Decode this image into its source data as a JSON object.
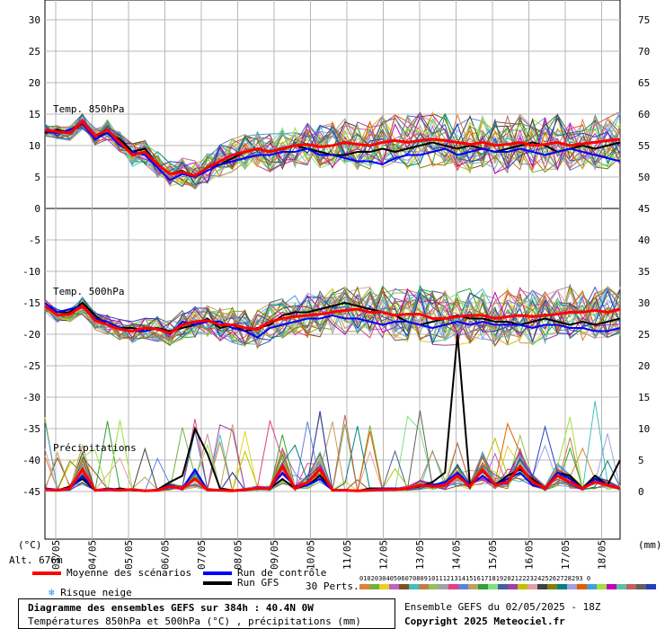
{
  "chart_data": {
    "type": "line",
    "title": "Diagramme des ensembles GEFS sur 384h : 40.4N 0W",
    "subtitle": "Températures 850hPa et 500hPa (°C) , précipitations (mm)",
    "run_info": "Ensemble GEFS du 02/05/2025 - 18Z",
    "copyright": "Copyright 2025 Meteociel.fr",
    "left_axis_unit": "(°C)",
    "right_axis_unit": "(mm)",
    "altitude": "Alt. 676m",
    "left_ticks": [
      "30",
      "25",
      "20",
      "15",
      "10",
      "5",
      "0",
      "-5",
      "-10",
      "-15",
      "-20",
      "-25",
      "-30",
      "-35",
      "-40",
      "-45"
    ],
    "right_ticks": [
      "75",
      "70",
      "65",
      "60",
      "55",
      "50",
      "45",
      "40",
      "35",
      "30",
      "25",
      "20",
      "15",
      "10",
      "5",
      "0"
    ],
    "x_dates": [
      "03/05",
      "04/05",
      "05/05",
      "06/05",
      "07/05",
      "08/05",
      "09/05",
      "10/05",
      "11/05",
      "12/05",
      "13/05",
      "14/05",
      "15/05",
      "16/05",
      "17/05",
      "18/05"
    ],
    "panels": [
      "Temp. 850hPa",
      "Temp. 500hPa",
      "Précipitations"
    ],
    "series": [
      {
        "name": "Moyenne des scénarios",
        "color": "#ff0000",
        "t850": [
          12.5,
          12.2,
          12.0,
          13.8,
          11.5,
          12.5,
          10.5,
          8.5,
          9.0,
          7.0,
          5.5,
          5.8,
          5.2,
          6.5,
          7.5,
          8.5,
          9.0,
          9.5,
          9.0,
          9.5,
          10.0,
          10.2,
          9.8,
          10.0,
          10.5,
          10.2,
          10.0,
          10.5,
          10.8,
          10.5,
          10.8,
          11.0,
          10.8,
          10.5,
          10.2,
          10.5,
          10.0,
          10.2,
          10.5,
          10.0,
          10.2,
          10.5,
          10.0,
          10.3,
          10.5,
          10.8,
          11.0
        ],
        "t500": [
          -15.5,
          -17.0,
          -16.8,
          -15.5,
          -17.8,
          -18.5,
          -19.2,
          -19.5,
          -19.0,
          -19.2,
          -19.8,
          -18.5,
          -18.0,
          -17.8,
          -18.5,
          -18.5,
          -19.0,
          -19.2,
          -18.0,
          -17.5,
          -17.2,
          -17.0,
          -16.8,
          -16.5,
          -16.2,
          -16.0,
          -16.5,
          -16.5,
          -17.0,
          -16.8,
          -16.8,
          -17.5,
          -17.5,
          -17.2,
          -17.0,
          -17.0,
          -17.5,
          -17.2,
          -17.0,
          -17.2,
          -17.0,
          -16.8,
          -16.5,
          -16.5,
          -16.2,
          -16.5,
          -16.0
        ],
        "precip": [
          0.3,
          0.2,
          0.5,
          3.5,
          0.2,
          0.3,
          0.2,
          0.3,
          0.1,
          0.2,
          0.8,
          0.5,
          2.0,
          0.3,
          0.2,
          0.1,
          0.3,
          0.5,
          0.5,
          4.0,
          0.5,
          1.5,
          3.5,
          0.2,
          0.2,
          0.1,
          0.2,
          0.3,
          0.3,
          0.5,
          1.0,
          0.8,
          1.0,
          2.5,
          0.8,
          3.5,
          1.0,
          1.5,
          4.0,
          1.5,
          0.5,
          2.5,
          1.5,
          0.5,
          1.5,
          1.0,
          0.5
        ]
      },
      {
        "name": "Run de contrôle",
        "color": "#0000ff",
        "t850": [
          12.2,
          12.0,
          12.5,
          13.5,
          11.0,
          12.0,
          10.0,
          9.0,
          8.5,
          6.5,
          4.5,
          5.5,
          5.0,
          6.0,
          7.0,
          7.5,
          8.0,
          8.5,
          8.5,
          9.0,
          9.0,
          9.5,
          8.5,
          8.5,
          8.0,
          7.5,
          7.5,
          7.0,
          8.0,
          8.5,
          8.5,
          9.0,
          9.5,
          8.5,
          9.0,
          9.5,
          9.0,
          9.0,
          9.5,
          9.0,
          8.5,
          9.0,
          9.5,
          9.0,
          8.5,
          8.0,
          7.5
        ],
        "t500": [
          -15.0,
          -16.5,
          -16.0,
          -15.5,
          -17.5,
          -18.0,
          -19.0,
          -19.5,
          -19.5,
          -19.0,
          -20.0,
          -18.0,
          -18.5,
          -18.0,
          -18.0,
          -19.0,
          -19.5,
          -20.5,
          -19.0,
          -18.5,
          -18.0,
          -17.5,
          -17.5,
          -17.0,
          -17.5,
          -17.5,
          -18.0,
          -18.5,
          -18.0,
          -18.0,
          -18.5,
          -19.0,
          -18.5,
          -18.0,
          -18.5,
          -18.0,
          -18.5,
          -18.5,
          -18.5,
          -19.0,
          -18.5,
          -18.5,
          -19.0,
          -19.0,
          -19.5,
          -19.5,
          -19.0
        ],
        "precip": [
          0.5,
          0.3,
          0.5,
          2.5,
          0.2,
          0.5,
          0.3,
          0.2,
          0.1,
          0.2,
          1.0,
          0.5,
          3.5,
          0.2,
          0.2,
          0.1,
          0.2,
          0.5,
          0.5,
          3.0,
          0.8,
          1.0,
          2.0,
          0.2,
          0.2,
          0.1,
          0.3,
          0.5,
          0.5,
          0.5,
          1.0,
          1.0,
          1.5,
          3.0,
          1.0,
          2.5,
          1.0,
          2.0,
          3.0,
          1.0,
          0.5,
          3.0,
          2.0,
          0.5,
          2.0,
          1.0,
          0.5
        ]
      },
      {
        "name": "Run GFS",
        "color": "#000000",
        "t850": [
          12.0,
          12.5,
          12.0,
          13.5,
          11.5,
          12.0,
          11.0,
          9.0,
          9.5,
          7.0,
          5.5,
          6.0,
          5.0,
          6.5,
          7.0,
          8.0,
          9.0,
          9.5,
          9.0,
          9.5,
          10.0,
          9.5,
          9.0,
          8.5,
          8.5,
          9.0,
          9.0,
          9.5,
          9.0,
          9.5,
          10.0,
          10.5,
          10.0,
          9.5,
          10.0,
          9.5,
          9.0,
          9.5,
          10.0,
          10.5,
          10.0,
          9.0,
          9.5,
          10.0,
          9.5,
          10.0,
          10.5
        ],
        "t500": [
          -15.5,
          -16.5,
          -16.5,
          -15.0,
          -17.0,
          -18.5,
          -19.0,
          -19.0,
          -19.5,
          -19.0,
          -19.5,
          -19.0,
          -18.5,
          -17.5,
          -19.0,
          -18.5,
          -19.5,
          -19.0,
          -18.5,
          -17.0,
          -16.5,
          -16.5,
          -16.0,
          -15.5,
          -15.0,
          -15.5,
          -16.0,
          -16.5,
          -17.0,
          -18.0,
          -18.5,
          -18.0,
          -17.5,
          -17.0,
          -17.5,
          -17.5,
          -18.0,
          -18.0,
          -18.5,
          -18.0,
          -17.5,
          -18.0,
          -18.5,
          -18.0,
          -18.5,
          -18.0,
          -17.5
        ],
        "precip": [
          0.5,
          0.2,
          0.8,
          2.0,
          0.2,
          0.2,
          0.5,
          0.2,
          0.1,
          0.3,
          1.5,
          2.5,
          10.0,
          6.0,
          0.5,
          0.2,
          0.3,
          0.5,
          0.5,
          2.0,
          0.5,
          1.0,
          2.5,
          0.3,
          0.2,
          0.1,
          0.5,
          0.5,
          0.5,
          0.5,
          0.8,
          1.5,
          3.0,
          25.0,
          1.0,
          3.5,
          1.0,
          2.5,
          3.5,
          2.0,
          0.5,
          3.0,
          2.5,
          0.5,
          2.5,
          1.0,
          5.0
        ]
      }
    ],
    "members": 30,
    "member_colors": [
      "#e0803a",
      "#70b040",
      "#e8d020",
      "#c060c0",
      "#805020",
      "#40c0c0",
      "#c08040",
      "#90c060",
      "#a0a0a0",
      "#e04080",
      "#6080e0",
      "#c0a060",
      "#30a030",
      "#80e080",
      "#4060a0",
      "#a040a0",
      "#c0c000",
      "#e0a0a0",
      "#404040",
      "#808000",
      "#008080",
      "#a0a0e0",
      "#e06000",
      "#40a0e0",
      "#a0e040",
      "#c000c0",
      "#60c0a0",
      "#c06060",
      "#606060",
      "#2040c0"
    ]
  },
  "legend": {
    "mean": "Moyenne des scénarios",
    "control": "Run de contrôle",
    "gfs": "Run GFS",
    "snow": "Risque neige",
    "perts_label": "30 Perts.",
    "perts_numbers": "01020304050607080910111213141516171819202122232425262728293 0"
  }
}
